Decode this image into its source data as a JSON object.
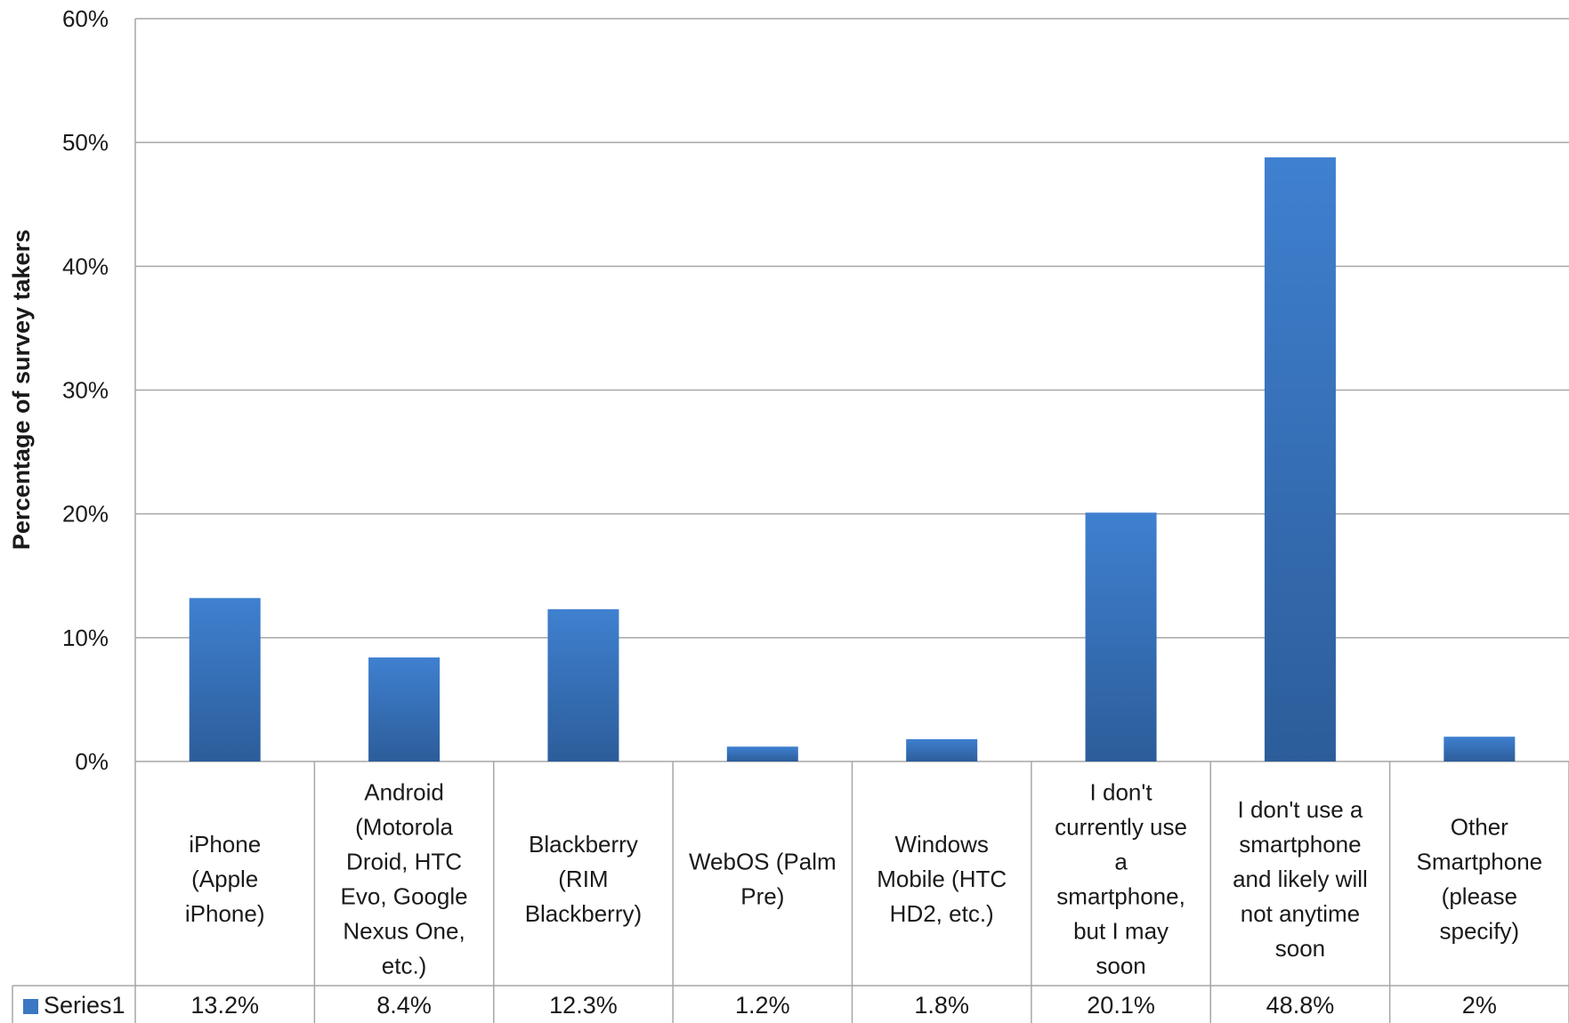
{
  "chart_data": {
    "type": "bar",
    "ylabel": "Percentage of survey takers",
    "ylim": [
      0,
      60
    ],
    "yticks": [
      0,
      10,
      20,
      30,
      40,
      50,
      60
    ],
    "ytick_labels": [
      "0%",
      "10%",
      "20%",
      "30%",
      "40%",
      "50%",
      "60%"
    ],
    "grid": true,
    "legend": "bottom-left (data table)",
    "categories": [
      [
        "iPhone",
        "(Apple",
        "iPhone)"
      ],
      [
        "Android",
        "(Motorola",
        "Droid, HTC",
        "Evo, Google",
        "Nexus One,",
        "etc.)"
      ],
      [
        "Blackberry",
        "(RIM",
        "Blackberry)"
      ],
      [
        "WebOS (Palm",
        "Pre)"
      ],
      [
        "Windows",
        "Mobile (HTC",
        "HD2, etc.)"
      ],
      [
        "I don't",
        "currently use",
        "a",
        "smartphone,",
        "but I may",
        "soon"
      ],
      [
        "I don't use a",
        "smartphone",
        "and likely will",
        "not anytime",
        "soon"
      ],
      [
        "Other",
        "Smartphone",
        "(please",
        "specify)"
      ]
    ],
    "series": [
      {
        "name": "Series1",
        "values": [
          13.2,
          8.4,
          12.3,
          1.2,
          1.8,
          20.1,
          48.8,
          2
        ],
        "value_labels": [
          "13.2%",
          "8.4%",
          "12.3%",
          "1.2%",
          "1.8%",
          "20.1%",
          "48.8%",
          "2%"
        ],
        "color": "#3a78c3"
      }
    ]
  },
  "colors": {
    "bar_light": "#3f80d0",
    "bar_dark": "#2c5d9a",
    "grid": "#a6a6a6"
  }
}
